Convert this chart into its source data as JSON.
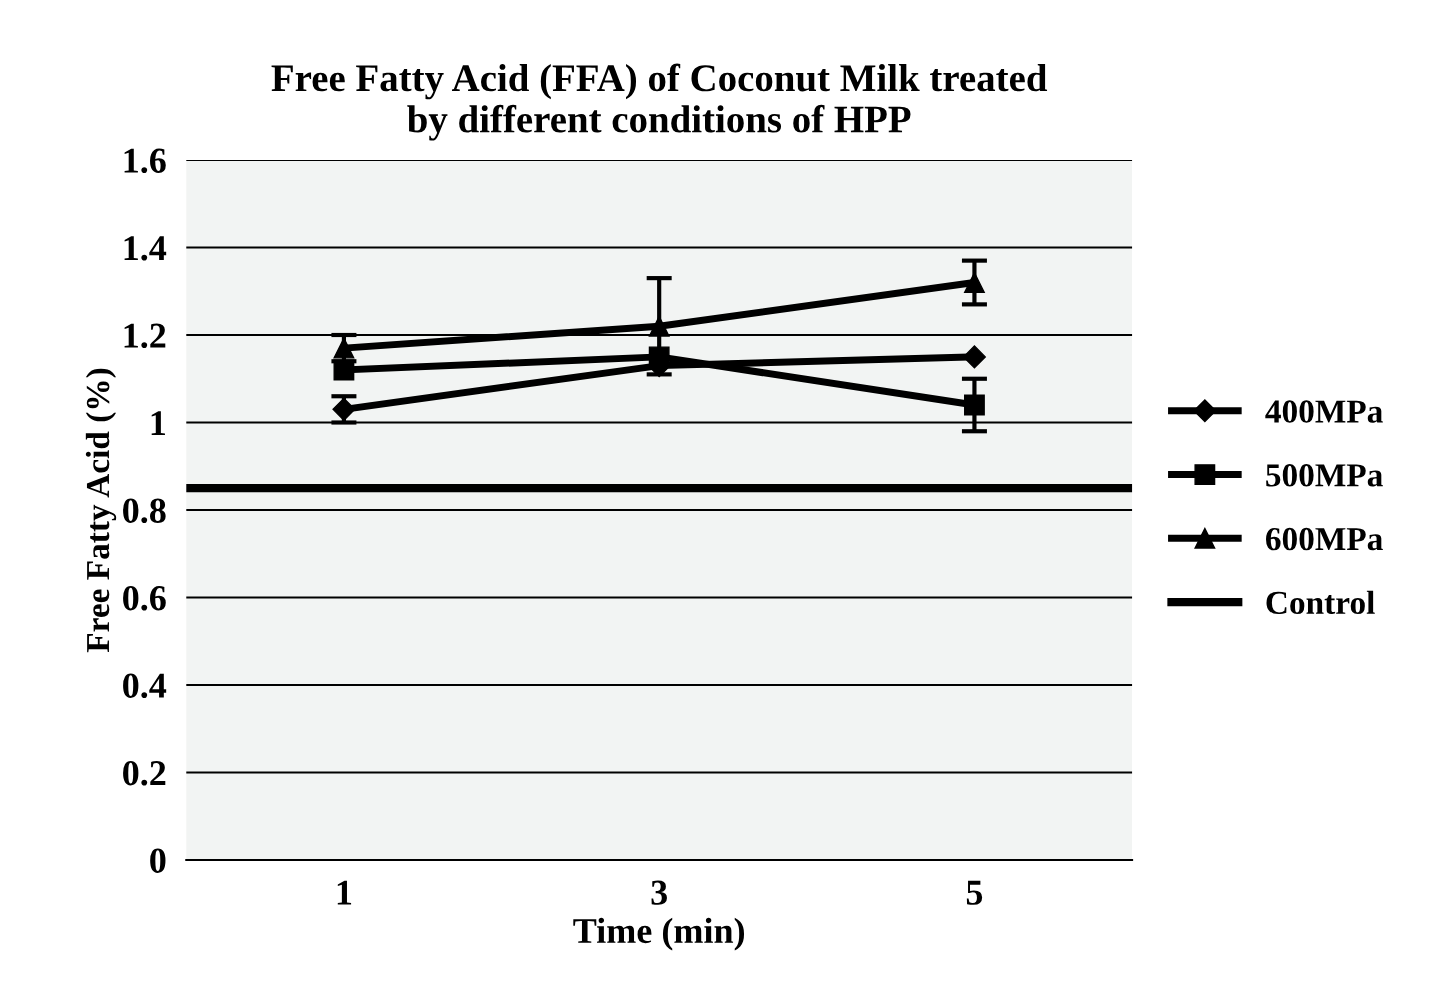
{
  "chart_data": {
    "type": "line",
    "title": "Free Fatty Acid (FFA) of Coconut Milk treated\nby different conditions of HPP",
    "xlabel": "Time (min)",
    "ylabel": "Free Fatty Acid (%)",
    "categories": [
      "1",
      "3",
      "5"
    ],
    "series": [
      {
        "name": "400MPa",
        "color": "#000000",
        "marker": "diamond",
        "values": [
          1.03,
          1.13,
          1.15
        ],
        "errors": [
          0.03,
          null,
          null
        ]
      },
      {
        "name": "500MPa",
        "color": "#000000",
        "marker": "square",
        "values": [
          1.12,
          1.15,
          1.04
        ],
        "errors": [
          null,
          null,
          0.06
        ]
      },
      {
        "name": "600MPa",
        "color": "#000000",
        "marker": "triangle",
        "values": [
          1.17,
          1.22,
          1.32
        ],
        "errors": [
          0.03,
          0.11,
          0.05
        ]
      }
    ],
    "ref_lines": [
      {
        "axis": "y",
        "value": 0.85,
        "label": "Control",
        "color": "#000000"
      }
    ],
    "ylim": [
      0,
      1.6
    ],
    "yticks": [
      0,
      0.2,
      0.4,
      0.6,
      0.8,
      1,
      1.2,
      1.4,
      1.6
    ],
    "grid": "y",
    "legend": "right"
  }
}
